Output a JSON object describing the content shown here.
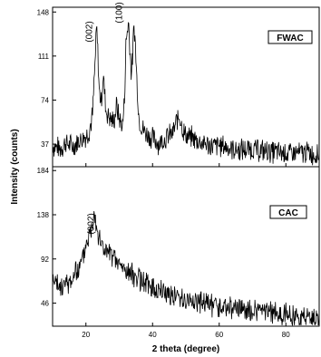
{
  "chart_data": [
    {
      "type": "line",
      "panel": "top",
      "legend": "FWAC",
      "legend_position": "top-right",
      "xlabel": "2 theta (degree)",
      "ylabel": "Intensity (counts)",
      "xlim": [
        10,
        90
      ],
      "ylim": [
        18,
        152
      ],
      "yticks": [
        37,
        74,
        111,
        148
      ],
      "xticks": [
        20,
        40,
        60,
        80
      ],
      "grid": false,
      "annotations": [
        {
          "text": "(002)",
          "x": 23.5
        },
        {
          "text": "(100)",
          "x": 32.5
        }
      ],
      "series": [
        {
          "x": [
            10,
            12,
            14,
            16,
            18,
            20,
            21,
            22,
            22.8,
            23.2,
            23.6,
            24.0,
            24.6,
            25.2,
            26,
            27,
            28,
            28.6,
            29.2,
            30,
            31,
            31.6,
            32,
            32.4,
            32.8,
            33.2,
            33.6,
            34,
            34.4,
            34.8,
            35.2,
            35.6,
            36,
            37,
            38,
            40,
            42,
            44,
            45,
            46,
            46.8,
            47.4,
            48,
            48.6,
            49.2,
            50,
            52,
            55,
            58,
            60,
            63,
            66,
            70,
            74,
            78,
            82,
            86,
            90
          ],
          "values": [
            36,
            33,
            38,
            35,
            40,
            44,
            48,
            62,
            108,
            136,
            112,
            82,
            72,
            96,
            65,
            60,
            56,
            58,
            70,
            58,
            52,
            76,
            120,
            132,
            140,
            118,
            96,
            108,
            136,
            124,
            96,
            74,
            56,
            50,
            46,
            42,
            38,
            42,
            44,
            46,
            52,
            58,
            60,
            55,
            48,
            44,
            42,
            38,
            35,
            36,
            34,
            32,
            33,
            31,
            30,
            29,
            30,
            28
          ]
        }
      ]
    },
    {
      "type": "line",
      "panel": "bottom",
      "legend": "CAC",
      "legend_position": "top-right",
      "xlim": [
        10,
        90
      ],
      "ylim": [
        22,
        188
      ],
      "yticks": [
        46,
        92,
        138,
        184
      ],
      "xticks": [
        20,
        40,
        60,
        80
      ],
      "grid": false,
      "annotations": [
        {
          "text": "(002)",
          "x": 24
        }
      ],
      "series": [
        {
          "x": [
            10,
            12,
            14,
            16,
            18,
            19,
            20,
            21,
            22,
            22.5,
            23,
            24,
            25,
            26,
            28,
            30,
            32,
            35,
            40,
            45,
            50,
            55,
            60,
            65,
            70,
            75,
            80,
            85,
            90
          ],
          "values": [
            68,
            62,
            65,
            72,
            82,
            92,
            108,
            118,
            128,
            148,
            132,
            112,
            106,
            100,
            94,
            86,
            80,
            74,
            62,
            56,
            50,
            46,
            42,
            40,
            38,
            36,
            34,
            32,
            30
          ]
        }
      ]
    }
  ]
}
